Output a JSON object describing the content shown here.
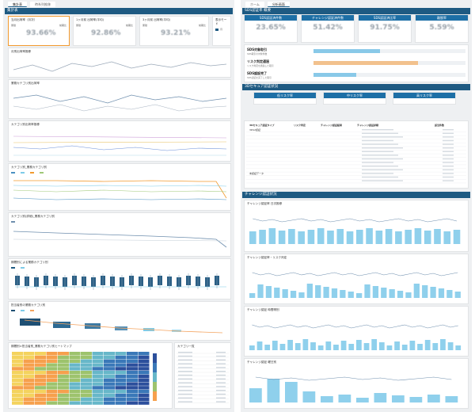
{
  "left": {
    "tabs": [
      "集計表",
      "時系列推移"
    ],
    "section_title": "集計表",
    "kpis": [
      {
        "title": "当月出荷率（月次）",
        "label_a": "累積",
        "label_b": "前期比",
        "value": "93.66%"
      },
      {
        "title": "1ヶ月前 出荷率(平均)",
        "label_a": "累積",
        "label_b": "前期比",
        "value": "92.86%"
      },
      {
        "title": "3ヶ月前 出荷率(平均)",
        "label_a": "累積",
        "label_b": "前期比",
        "value": "93.21%"
      },
      {
        "title": "表示モード",
        "label_a": "月",
        "label_b": "",
        "value": ""
      }
    ],
    "charts": [
      {
        "title": "月別出荷率推移"
      },
      {
        "title": "業務カテゴリ別出荷率"
      },
      {
        "title": "カテゴリ別出荷率推移"
      },
      {
        "title": "カテゴリ別_業務カテゴリ別"
      },
      {
        "title": "カテゴリ別(詳細)_業務カテゴリ別"
      },
      {
        "title": "期間別による業務カテゴリ別"
      },
      {
        "title": "担当者別の業務カテゴリ別"
      },
      {
        "title": "期間別×担当者別_業務カテゴリ別ヒートマップ"
      }
    ],
    "side_table_title": "カテゴリ一覧"
  },
  "right": {
    "tabs": [
      "ホーム",
      "分析画面"
    ],
    "section1": "SDS認証率 概要",
    "kpis": [
      {
        "head": "SDS認証済件数",
        "value": "23.65%"
      },
      {
        "head": "チャレンジ認証済件数",
        "value": "51.42%"
      },
      {
        "head": "SDS認証済比率",
        "value": "91.75%"
      },
      {
        "head": "離脱率",
        "value": "5.59%"
      }
    ],
    "progress": [
      {
        "title": "SDS対象取引",
        "desc": "SDS取引の対象件数",
        "fill": 0.44,
        "color": "#89c9e8"
      },
      {
        "title": "リスク判定通過",
        "desc": "リスク判定を通過した取引",
        "fill": 0.69,
        "color": "#f2c18d"
      },
      {
        "title": "SDS認証完了",
        "desc": "SDS認証を完了した取引",
        "fill": 0.28,
        "color": "#89c9e8"
      }
    ],
    "section2": "3Dセキュア認証状況",
    "risk_heads": [
      "低リスク率",
      "中リスク率",
      "高リスク率"
    ],
    "table_headers": [
      "3Dセキュア認証タイプ",
      "リスク判定",
      "チャレンジ認証結果",
      "チャレンジ認証詳細",
      "該当件数"
    ],
    "table_rows": [
      "3DS2認証",
      "",
      "",
      "",
      "",
      "",
      "",
      "",
      "",
      "",
      "",
      "",
      "未認証データ"
    ],
    "section3": "チャレンジ認証状況",
    "charts": [
      {
        "title": "チャレンジ認証率 日次推移"
      },
      {
        "title": "チャレンジ認証率・リスク判定"
      },
      {
        "title": "チャレンジ認証 時間帯別"
      },
      {
        "title": "チャレンジ認証 曜日別"
      }
    ]
  },
  "colors": {
    "nav": "#1e5a82",
    "accent_border": "#f29a2e",
    "bar_blue": "#8fd0ec",
    "line_orange": "#f4a460"
  }
}
